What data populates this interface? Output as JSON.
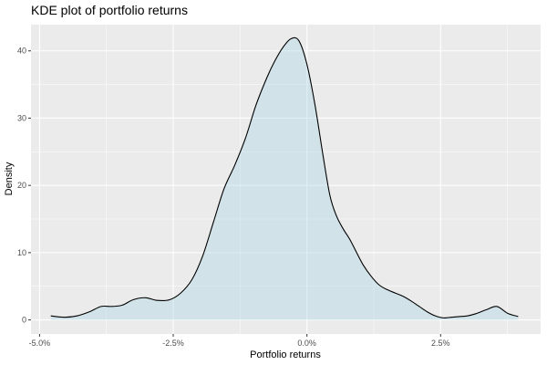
{
  "chart_data": {
    "type": "area",
    "title": "KDE plot of portfolio returns",
    "xlabel": "Portfolio returns",
    "ylabel": "Density",
    "xlim": [
      -0.0516,
      0.0437
    ],
    "ylim": [
      -2.09,
      43.9
    ],
    "x_ticks": [
      {
        "value": -0.05,
        "label": "-5.0%"
      },
      {
        "value": -0.025,
        "label": "-2.5%"
      },
      {
        "value": 0.0,
        "label": "0.0%"
      },
      {
        "value": 0.025,
        "label": "2.5%"
      }
    ],
    "y_ticks": [
      {
        "value": 0,
        "label": "0"
      },
      {
        "value": 10,
        "label": "10"
      },
      {
        "value": 20,
        "label": "20"
      },
      {
        "value": 30,
        "label": "30"
      },
      {
        "value": 40,
        "label": "40"
      }
    ],
    "grid": true,
    "legend": "none",
    "colors": {
      "panel": "#EBEBEB",
      "grid_major": "#FFFFFF",
      "fill": "#ADD8E6",
      "line": "#000000"
    },
    "series": [
      {
        "x": [
          -0.0479,
          -0.0453,
          -0.043,
          -0.0407,
          -0.0385,
          -0.0365,
          -0.0345,
          -0.0325,
          -0.0302,
          -0.028,
          -0.0257,
          -0.0236,
          -0.0215,
          -0.0195,
          -0.0175,
          -0.0155,
          -0.0135,
          -0.0115,
          -0.0095,
          -0.0075,
          -0.006,
          -0.0045,
          -0.003,
          -0.0015,
          0.0,
          0.0015,
          0.003,
          0.0043,
          0.0055,
          0.0068,
          0.008,
          0.0093,
          0.0105,
          0.012,
          0.0135,
          0.015,
          0.0165,
          0.018,
          0.0195,
          0.021,
          0.0225,
          0.024,
          0.0255,
          0.027,
          0.0285,
          0.03,
          0.0315,
          0.0335,
          0.0355,
          0.0375,
          0.0395
        ],
        "y": [
          0.6,
          0.4,
          0.6,
          1.2,
          2.0,
          2.0,
          2.2,
          3.0,
          3.3,
          2.9,
          3.0,
          4.0,
          6.0,
          9.5,
          14.5,
          19.5,
          23.0,
          27.0,
          32.0,
          36.0,
          38.5,
          40.5,
          41.8,
          41.5,
          38.0,
          32.0,
          24.5,
          18.5,
          15.5,
          13.5,
          12.0,
          10.0,
          8.2,
          6.5,
          5.2,
          4.5,
          4.0,
          3.5,
          2.8,
          2.0,
          1.2,
          0.6,
          0.3,
          0.4,
          0.5,
          0.6,
          0.9,
          1.5,
          2.0,
          1.0,
          0.5
        ]
      }
    ]
  }
}
